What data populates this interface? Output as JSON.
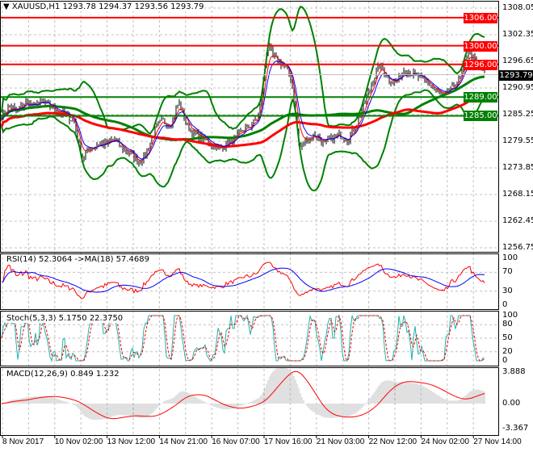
{
  "header": {
    "symbol": "XAUUSD,H1",
    "open": "1293.78",
    "high": "1294.37",
    "low": "1293.56",
    "close": "1293.79"
  },
  "colors": {
    "bull": "#000000",
    "up_line": "#ff0000",
    "support": "#008000",
    "bands": "#008000",
    "ma_fast": "#ff0000",
    "ma_slow": "#0000ff",
    "rsi": "#ff0000",
    "rsi_ma": "#0000ff",
    "stoch_main": "#20b2aa",
    "stoch_signal": "#ff0000",
    "macd_hist": "#c0c0c0",
    "macd_signal": "#ff0000",
    "grid": "#c0c0c0"
  },
  "price_axis": {
    "ticks": [
      "1308.05",
      "1302.35",
      "1296.65",
      "1290.95",
      "1285.25",
      "1279.55",
      "1273.85",
      "1268.15",
      "1262.45",
      "1256.75"
    ],
    "current": "1293.79"
  },
  "levels": [
    {
      "price": 1306.0,
      "label": "1306.00",
      "color": "#ff0000"
    },
    {
      "price": 1300.0,
      "label": "1300.00",
      "color": "#ff0000"
    },
    {
      "price": 1296.0,
      "label": "1296.00",
      "color": "#ff0000"
    },
    {
      "price": 1289.0,
      "label": "1289.00",
      "color": "#008000"
    },
    {
      "price": 1285.0,
      "label": "1285.00",
      "color": "#008000"
    }
  ],
  "rsi": {
    "label": "RSI(14) 52.3064  ->MA(18) 57.4689",
    "ticks": [
      "100",
      "70",
      "30",
      "0"
    ]
  },
  "stoch": {
    "label": "Stoch(5,3,3) 5.1750 22.3750",
    "ticks": [
      "100",
      "80",
      "50",
      "20",
      "0"
    ]
  },
  "macd": {
    "label": "MACD(12,26,9) 0.849 1.232",
    "ticks": [
      "3.888",
      "0.00",
      "-3.367"
    ]
  },
  "time_axis": [
    "8 Nov 2017",
    "10 Nov 02:00",
    "13 Nov 12:00",
    "14 Nov 21:00",
    "16 Nov 07:00",
    "17 Nov 16:00",
    "21 Nov 03:00",
    "22 Nov 12:00",
    "24 Nov 02:00",
    "27 Nov 14:00"
  ],
  "chart_data": {
    "type": "candlestick",
    "symbol": "XAUUSD",
    "timeframe": "H1",
    "ylim": [
      1256.75,
      1308.05
    ],
    "approx_close": [
      1285,
      1287,
      1286,
      1288,
      1287,
      1288,
      1287,
      1286,
      1285,
      1284,
      1276,
      1278,
      1279,
      1279,
      1280,
      1278,
      1277,
      1275,
      1277,
      1282,
      1284,
      1283,
      1288,
      1283,
      1281,
      1280,
      1279,
      1278,
      1279,
      1280,
      1282,
      1283,
      1285,
      1300,
      1297,
      1296,
      1293,
      1278,
      1280,
      1281,
      1279,
      1280,
      1281,
      1280,
      1283,
      1287,
      1292,
      1296,
      1293,
      1292,
      1295,
      1294,
      1293,
      1292,
      1290,
      1289,
      1291,
      1293,
      1299,
      1296,
      1294
    ]
  }
}
